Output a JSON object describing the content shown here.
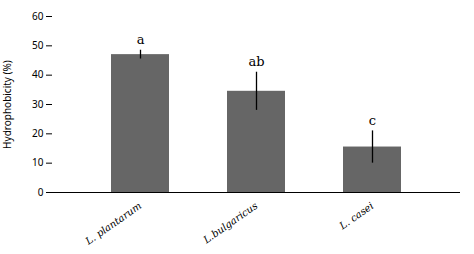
{
  "chart_data": {
    "type": "bar",
    "categories": [
      "L. plantarum",
      "L.bulgaricus",
      "L. casei"
    ],
    "values": [
      47.0,
      34.5,
      15.5
    ],
    "errors": [
      1.5,
      6.5,
      5.5
    ],
    "annotations": [
      "a",
      "ab",
      "c"
    ],
    "color": "#666666",
    "ylabel": "Hydrophobicity (%)",
    "ylim": [
      0,
      60
    ],
    "yticks": [
      0,
      10,
      20,
      30,
      40,
      50,
      60
    ]
  }
}
